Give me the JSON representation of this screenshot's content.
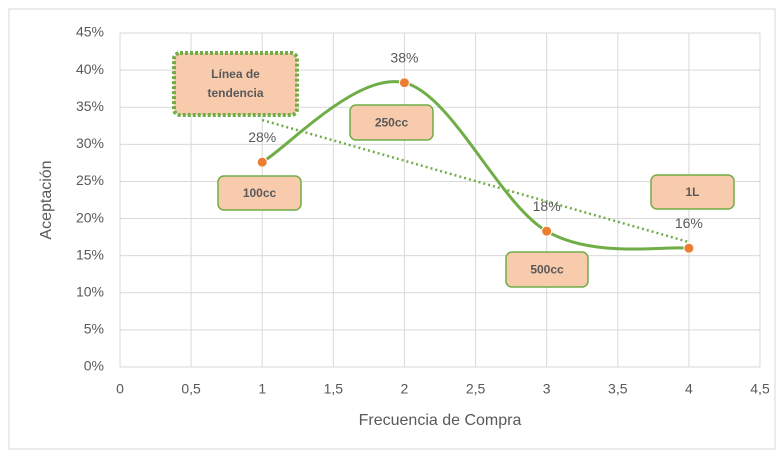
{
  "chart_data": {
    "type": "scatter",
    "x_label": "Frecuencia de Compra",
    "y_label": "Aceptación",
    "series": [
      {
        "name": "Aceptación",
        "color": "#70ad47",
        "marker_color": "#ed7d31",
        "x": [
          1,
          2,
          3,
          4
        ],
        "values": [
          27.6,
          38.3,
          18.3,
          16.0
        ],
        "value_labels": [
          "28%",
          "38%",
          "18%",
          "16%"
        ]
      }
    ],
    "trendline": "linear",
    "trendline_color": "#70ad47",
    "annotations": [
      "Línea de tendencia",
      "100cc",
      "250cc",
      "500cc",
      "1L"
    ],
    "xlim": [
      0,
      4.5
    ],
    "xticks": [
      0,
      {
        "value": 0.5,
        "label": "0,5"
      },
      1,
      {
        "value": 1.5,
        "label": "1,5"
      },
      2,
      {
        "value": 2.5,
        "label": "2,5"
      },
      3,
      {
        "value": 3.5,
        "label": "3,5"
      },
      4,
      {
        "value": 4.5,
        "label": "4,5"
      }
    ],
    "ylim": [
      0,
      45
    ],
    "yticks": [
      {
        "value": 0,
        "label": "0%"
      },
      {
        "value": 5,
        "label": "5%"
      },
      {
        "value": 10,
        "label": "10%"
      },
      {
        "value": 15,
        "label": "15%"
      },
      {
        "value": 20,
        "label": "20%"
      },
      {
        "value": 25,
        "label": "25%"
      },
      {
        "value": 30,
        "label": "30%"
      },
      {
        "value": 35,
        "label": "35%"
      },
      {
        "value": 40,
        "label": "40%"
      },
      {
        "value": 45,
        "label": "45%"
      }
    ],
    "grid": true
  }
}
